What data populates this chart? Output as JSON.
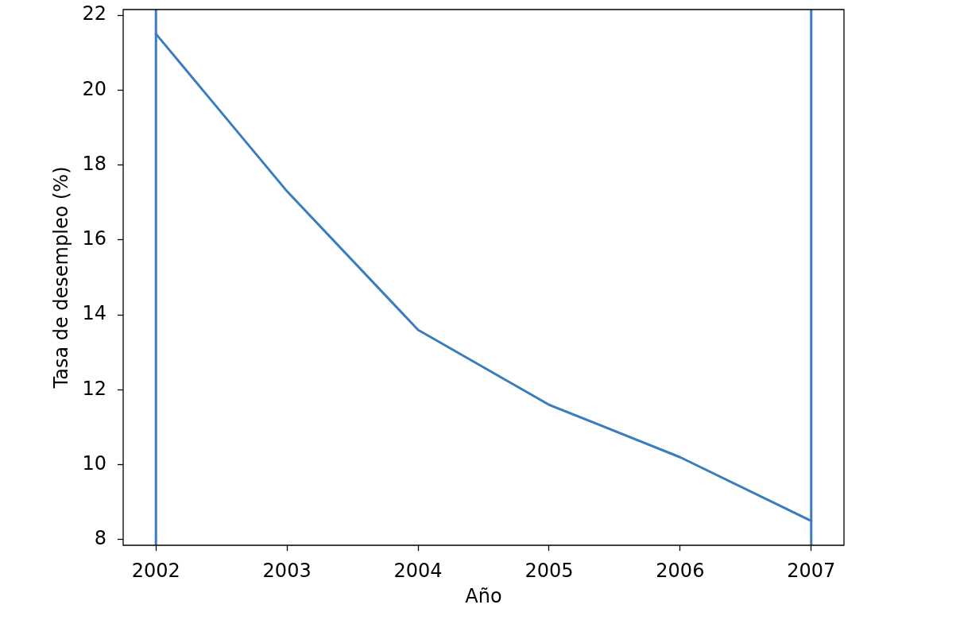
{
  "chart_data": {
    "type": "line",
    "xlabel": "Año",
    "ylabel": "Tasa de desempleo (%)",
    "x": [
      2002,
      2003,
      2004,
      2005,
      2006,
      2007
    ],
    "values": [
      21.5,
      17.3,
      13.6,
      11.6,
      10.2,
      8.5
    ],
    "color": "#3a7dbf",
    "xlim": [
      2001.75,
      2007.25
    ],
    "ylim": [
      7.85,
      22.15
    ],
    "xticks": [
      2002,
      2003,
      2004,
      2005,
      2006,
      2007
    ],
    "yticks": [
      8,
      10,
      12,
      14,
      16,
      18,
      20,
      22
    ],
    "ref_lines": [
      {
        "axis": "x",
        "value": 2002,
        "color": "#3a7dbf"
      },
      {
        "axis": "x",
        "value": 2007,
        "color": "#3a7dbf"
      }
    ]
  }
}
